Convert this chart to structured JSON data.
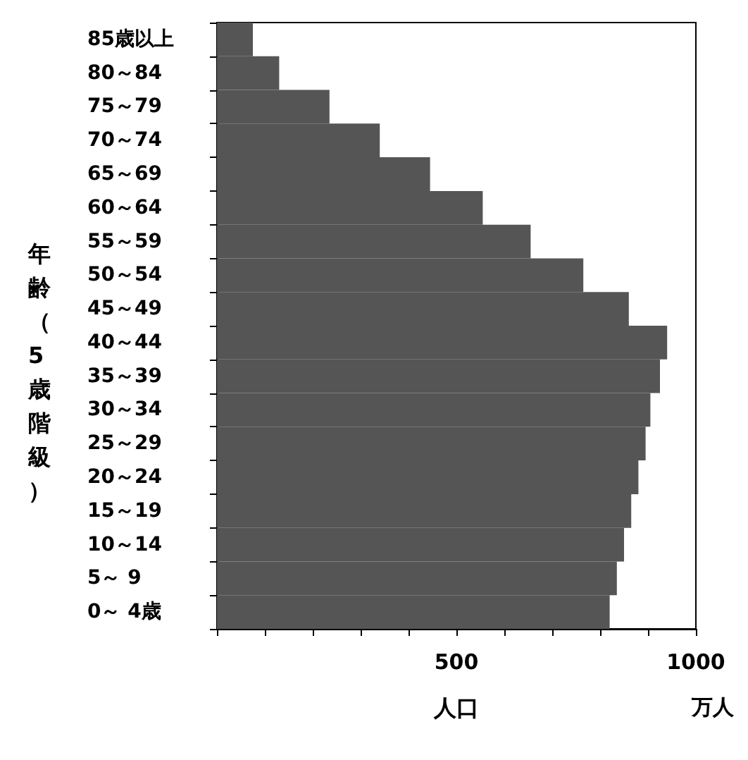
{
  "chart_data": {
    "type": "bar",
    "orientation": "horizontal",
    "xlabel": "人口",
    "ylabel": "年齢（5歳階級）",
    "categories": [
      "85歳以上",
      "80～84",
      "75～79",
      "70～74",
      "65～69",
      "60～64",
      "55～59",
      "50～54",
      "45～49",
      "40～44",
      "35～39",
      "30～34",
      "25～29",
      "20～24",
      "15～19",
      "10～14",
      "5～ 9",
      "0～ 4歳"
    ],
    "values": [
      75,
      130,
      235,
      340,
      445,
      555,
      655,
      765,
      860,
      940,
      925,
      905,
      895,
      880,
      865,
      850,
      835,
      820
    ],
    "color": "#555555",
    "xlim": [
      0,
      1000
    ],
    "xticks": [
      {
        "value": 0,
        "label": null
      },
      {
        "value": 100,
        "label": null
      },
      {
        "value": 200,
        "label": null
      },
      {
        "value": 300,
        "label": null
      },
      {
        "value": 400,
        "label": null
      },
      500,
      {
        "value": 600,
        "label": null
      },
      {
        "value": 700,
        "label": null
      },
      {
        "value": 800,
        "label": null
      },
      {
        "value": 900,
        "label": null
      },
      1000
    ],
    "annotations": [
      "万人"
    ],
    "grid": false
  }
}
